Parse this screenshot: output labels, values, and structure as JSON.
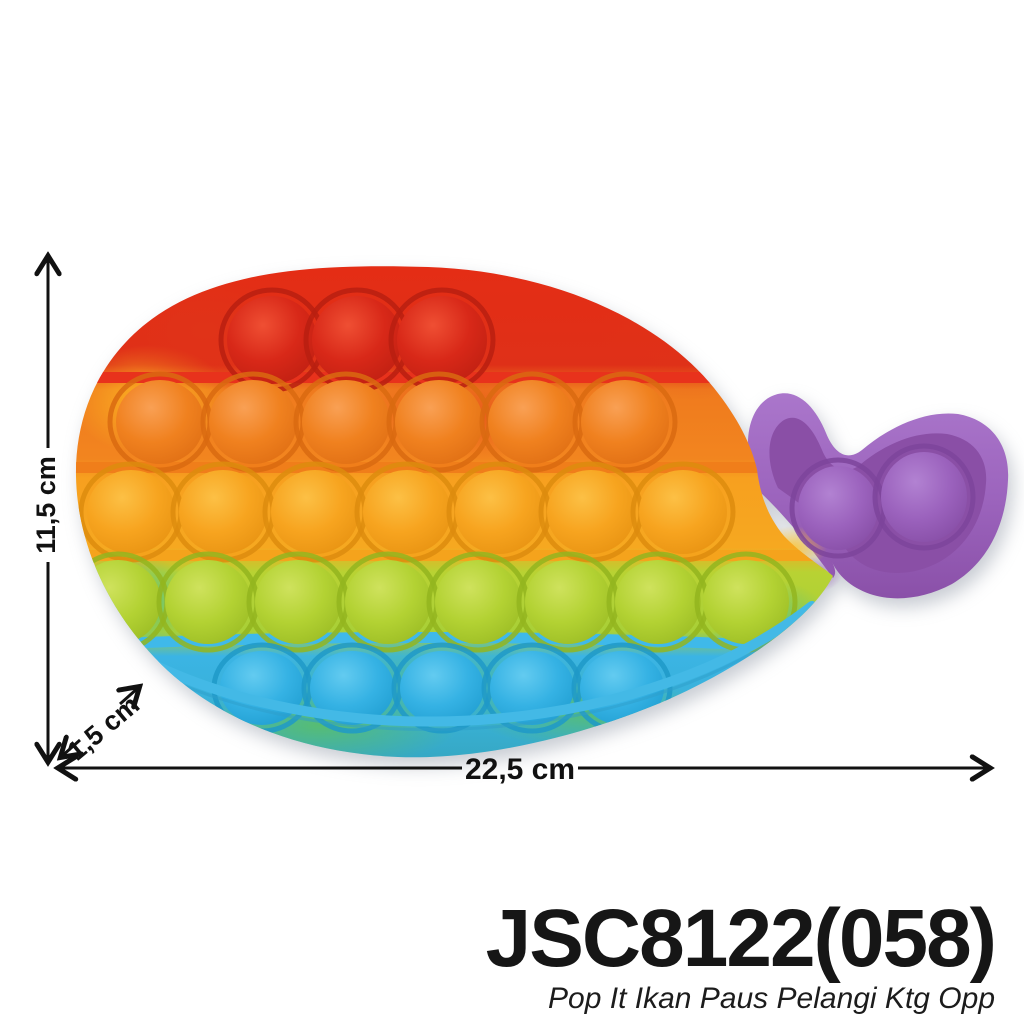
{
  "dimensions": {
    "height": "11,5 cm",
    "width": "22,5 cm",
    "thickness": "1,5 cm"
  },
  "product": {
    "code": "JSC8122(058)",
    "name": "Pop It Ikan Paus Pelangi Ktg Opp",
    "type": "rainbow whale pop-it silicone fidget toy",
    "rows": [
      {
        "color": "red",
        "bubbles": 3
      },
      {
        "color": "orange",
        "bubbles": 6
      },
      {
        "color": "yellow",
        "bubbles": 7
      },
      {
        "color": "green",
        "bubbles": 8
      },
      {
        "color": "blue",
        "bubbles": 5
      },
      {
        "color": "purple",
        "bubbles": 2,
        "part": "tail"
      }
    ]
  },
  "colors": {
    "red": "#e22d15",
    "orange": "#f2831f",
    "yellow": "#f7a31f",
    "green": "#b3d233",
    "blue": "#39b4e4",
    "purple": "#9c64bd",
    "annotation": "#111111",
    "background": "#ffffff"
  }
}
